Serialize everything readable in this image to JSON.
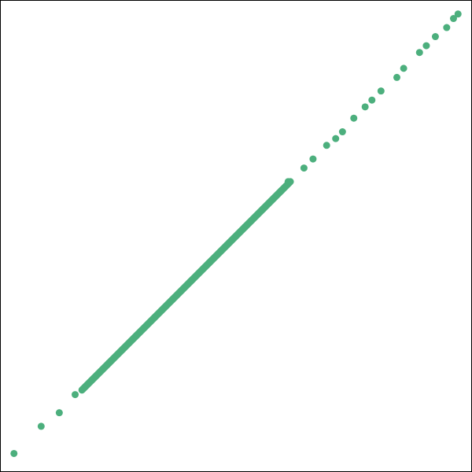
{
  "chart_data": {
    "type": "scatter",
    "title": "",
    "xlabel": "",
    "ylabel": "",
    "xlim": [
      0,
      1
    ],
    "ylim": [
      0,
      1
    ],
    "grid": false,
    "legend": "none",
    "marker_color": "#4caf7d",
    "series": [
      {
        "points": [
          [
            0.01,
            0.02
          ],
          [
            0.07,
            0.08
          ],
          [
            0.11,
            0.11
          ],
          [
            0.145,
            0.15
          ],
          [
            0.22,
            0.22
          ],
          [
            0.25,
            0.25
          ],
          [
            0.28,
            0.28
          ],
          [
            0.32,
            0.32
          ],
          [
            0.36,
            0.36
          ],
          [
            0.4,
            0.4
          ],
          [
            0.44,
            0.44
          ],
          [
            0.48,
            0.48
          ],
          [
            0.52,
            0.52
          ],
          [
            0.56,
            0.56
          ],
          [
            0.6,
            0.6
          ],
          [
            0.615,
            0.62
          ],
          [
            0.65,
            0.65
          ],
          [
            0.67,
            0.67
          ],
          [
            0.7,
            0.7
          ],
          [
            0.72,
            0.715
          ],
          [
            0.735,
            0.73
          ],
          [
            0.76,
            0.76
          ],
          [
            0.785,
            0.785
          ],
          [
            0.8,
            0.8
          ],
          [
            0.82,
            0.82
          ],
          [
            0.855,
            0.85
          ],
          [
            0.87,
            0.87
          ],
          [
            0.905,
            0.905
          ],
          [
            0.92,
            0.92
          ],
          [
            0.94,
            0.94
          ],
          [
            0.965,
            0.96
          ],
          [
            0.98,
            0.98
          ],
          [
            0.99,
            0.99
          ]
        ],
        "segments": [
          [
            [
              0.16,
              0.16
            ],
            [
              0.62,
              0.62
            ]
          ]
        ]
      }
    ]
  }
}
